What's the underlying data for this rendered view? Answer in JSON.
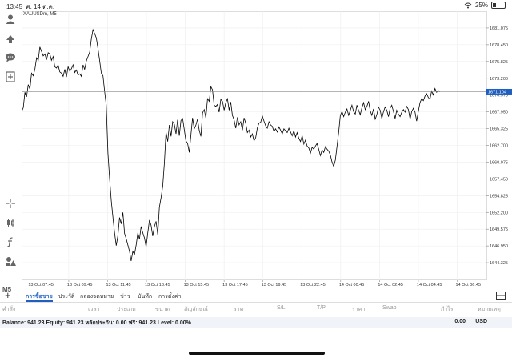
{
  "status_bar": {
    "time": "13:45",
    "date": "ศ. 14 ต.ค.",
    "battery": "25%",
    "battery_level": 0.25
  },
  "symbol_label": "XAUUSDm, M5",
  "toolbar": {
    "timeframe": "M5"
  },
  "chart_data": {
    "type": "line",
    "title": "",
    "x_tick_labels": [
      "13 Oct 07:45",
      "13 Oct 09:45",
      "13 Oct 11:45",
      "13 Oct 13:45",
      "13 Oct 15:45",
      "13 Oct 17:45",
      "13 Oct 19:45",
      "13 Oct 22:45",
      "14 Oct 00:45",
      "14 Oct 02:45",
      "14 Oct 04:45",
      "14 Oct 06:45"
    ],
    "y_tick_labels": [
      "1681.075",
      "1678.450",
      "1675.825",
      "1673.200",
      "1670.575",
      "1667.950",
      "1665.325",
      "1662.700",
      "1660.075",
      "1657.450",
      "1654.825",
      "1652.200",
      "1649.575",
      "1646.950",
      "1644.325"
    ],
    "ylim": [
      1641.7,
      1683.7
    ],
    "current_price": 1671.104,
    "current_price_label": "1671.104",
    "x_index_range": [
      0,
      280
    ],
    "x_tick_index_step": 23.4,
    "values": [
      1668.0,
      1668.6,
      1671.0,
      1670.3,
      1672.2,
      1671.5,
      1674.0,
      1673.6,
      1674.6,
      1676.4,
      1676.0,
      1678.1,
      1677.4,
      1676.7,
      1677.0,
      1676.1,
      1677.2,
      1677.0,
      1676.0,
      1676.6,
      1675.0,
      1674.8,
      1675.3,
      1674.2,
      1674.0,
      1673.5,
      1674.6,
      1673.4,
      1675.0,
      1674.3,
      1674.7,
      1675.3,
      1674.1,
      1674.5,
      1673.7,
      1673.9,
      1673.5,
      1675.3,
      1674.6,
      1675.9,
      1676.6,
      1677.3,
      1679.3,
      1680.8,
      1680.2,
      1679.5,
      1677.8,
      1676.0,
      1674.0,
      1673.6,
      1671.1,
      1669.0,
      1661.5,
      1657.5,
      1654.0,
      1651.5,
      1649.0,
      1647.0,
      1648.6,
      1651.4,
      1650.4,
      1652.2,
      1648.9,
      1648.1,
      1647.1,
      1646.1,
      1644.6,
      1646.1,
      1645.6,
      1647.1,
      1649.0,
      1648.0,
      1650.0,
      1649.0,
      1648.2,
      1646.8,
      1649.0,
      1651.0,
      1650.2,
      1648.5,
      1650.0,
      1650.8,
      1648.7,
      1653.0,
      1654.5,
      1656.3,
      1660.0,
      1664.8,
      1663.3,
      1665.9,
      1664.1,
      1666.4,
      1666.0,
      1664.5,
      1666.7,
      1664.2,
      1666.6,
      1666.9,
      1665.2,
      1663.4,
      1663.0,
      1661.6,
      1664.3,
      1667.0,
      1665.3,
      1665.9,
      1666.8,
      1665.1,
      1664.1,
      1667.8,
      1668.3,
      1667.0,
      1670.0,
      1669.6,
      1671.9,
      1671.4,
      1669.0,
      1668.8,
      1669.1,
      1667.9,
      1669.9,
      1669.6,
      1668.2,
      1669.4,
      1670.0,
      1668.2,
      1669.5,
      1667.4,
      1666.7,
      1665.4,
      1667.1,
      1665.9,
      1666.4,
      1665.1,
      1667.0,
      1666.2,
      1664.7,
      1665.1,
      1664.0,
      1664.5,
      1663.4,
      1663.9,
      1665.4,
      1666.2,
      1666.3,
      1667.3,
      1666.5,
      1665.8,
      1665.4,
      1666.4,
      1665.9,
      1665.7,
      1664.9,
      1665.3,
      1664.8,
      1665.6,
      1665.1,
      1664.5,
      1665.3,
      1665.0,
      1664.7,
      1665.4,
      1664.8,
      1664.2,
      1665.0,
      1664.0,
      1664.7,
      1663.8,
      1663.3,
      1664.2,
      1662.9,
      1663.5,
      1662.6,
      1662.3,
      1661.5,
      1662.4,
      1662.1,
      1662.6,
      1663.0,
      1662.1,
      1661.1,
      1662.0,
      1661.6,
      1662.5,
      1662.1,
      1661.8,
      1661.2,
      1660.1,
      1659.4,
      1660.4,
      1662.6,
      1664.7,
      1667.4,
      1668.0,
      1667.2,
      1667.9,
      1668.4,
      1667.4,
      1668.2,
      1669.0,
      1668.0,
      1667.6,
      1669.0,
      1668.2,
      1667.5,
      1668.6,
      1669.4,
      1668.3,
      1668.8,
      1669.6,
      1668.1,
      1667.4,
      1668.4,
      1666.8,
      1667.5,
      1668.7,
      1668.2,
      1666.9,
      1668.0,
      1668.7,
      1668.2,
      1667.2,
      1668.5,
      1669.0,
      1668.0,
      1666.9,
      1668.2,
      1667.6,
      1667.2,
      1667.9,
      1668.3,
      1667.9,
      1668.8,
      1668.3,
      1666.8,
      1668.0,
      1668.5,
      1667.9,
      1666.5,
      1668.0,
      1669.4,
      1670.0,
      1669.7,
      1670.4,
      1670.8,
      1670.2,
      1669.9,
      1671.2,
      1670.6,
      1671.6,
      1671.0,
      1671.3,
      1671.1
    ],
    "grid": true,
    "line_color": "#000000",
    "price_line_color": "#888888",
    "price_label_bg": "#1f5fbf"
  },
  "tabs": [
    {
      "label": "การซื้อขาย",
      "active": true
    },
    {
      "label": "ประวัติ",
      "active": false
    },
    {
      "label": "กล่องจดหมาย",
      "active": false
    },
    {
      "label": "ข่าว",
      "active": false
    },
    {
      "label": "บันทึก",
      "active": false
    },
    {
      "label": "การตั้งค่า",
      "active": false
    }
  ],
  "columns": [
    "คำสั่ง",
    "เวลา",
    "ประเภท",
    "ขนาด",
    "สัญลักษณ์",
    "ราคา",
    "S/L",
    "T/P",
    "ราคา",
    "Swap",
    "กำไร",
    "หมายเหตุ"
  ],
  "balance": {
    "text": "Balance: 941.23 Equity: 941.23 หลักประกัน: 0.00 ฟรี: 941.23 Level: 0.00%",
    "profit": "0.00",
    "currency": "USD"
  }
}
